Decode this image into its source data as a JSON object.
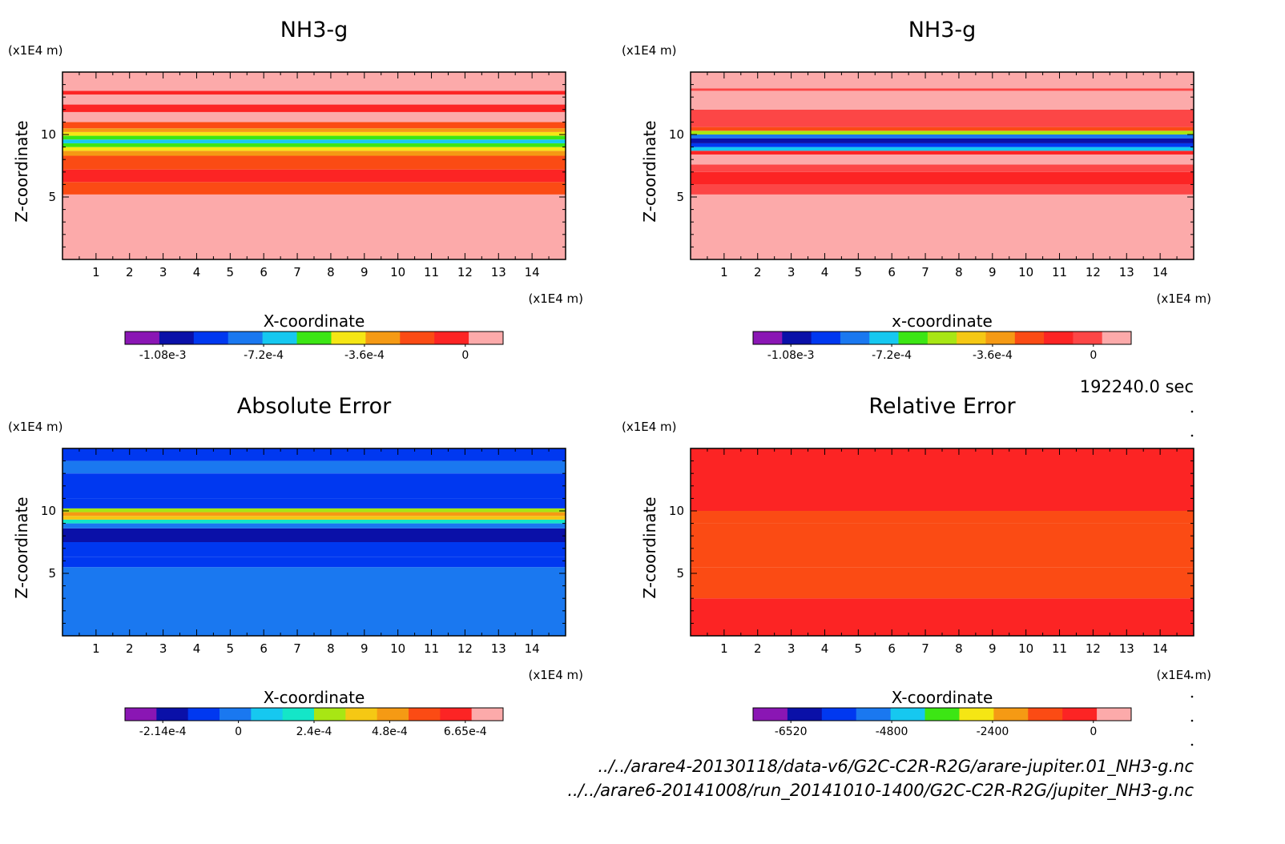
{
  "time_label": "192240.0 sec",
  "footer": {
    "line1": "../../arare4-20130118/data-v6/G2C-C2R-R2G/arare-jupiter.01_NH3-g.nc",
    "line2": "../../arare6-20141008/run_20141010-1400/G2C-C2R-R2G/jupiter_NH3-g.nc"
  },
  "chart_data": [
    {
      "type": "heatmap",
      "title": "NH3-g",
      "xlabel": "X-coordinate",
      "ylabel": "Z-coordinate",
      "x_unit": "(x1E4 m)",
      "y_unit": "(x1E4 m)",
      "xlim": [
        0,
        15
      ],
      "ylim": [
        0,
        15
      ],
      "x_ticks": [
        1,
        2,
        3,
        4,
        5,
        6,
        7,
        8,
        9,
        10,
        11,
        12,
        13,
        14
      ],
      "y_ticks": [
        5,
        10
      ],
      "colorbar": {
        "ticks": [
          "-1.08e-3",
          "-7.2e-4",
          "-3.6e-4",
          "0"
        ],
        "colors": [
          "#8a16b4",
          "#0a10a8",
          "#0038f0",
          "#1a78f0",
          "#16c8f0",
          "#3ce614",
          "#f5e614",
          "#f59a14",
          "#fb4b14",
          "#fc2424",
          "#fcaaaa"
        ]
      },
      "bands": [
        {
          "z0": 0,
          "z1": 5.2,
          "level": 10
        },
        {
          "z0": 5.2,
          "z1": 6.2,
          "level": 8
        },
        {
          "z0": 6.2,
          "z1": 7.2,
          "level": 9
        },
        {
          "z0": 7.2,
          "z1": 8.3,
          "level": 8
        },
        {
          "z0": 8.3,
          "z1": 8.7,
          "level": 7
        },
        {
          "z0": 8.7,
          "z1": 9.0,
          "level": 6
        },
        {
          "z0": 9.0,
          "z1": 9.3,
          "level": 5
        },
        {
          "z0": 9.3,
          "z1": 9.6,
          "level": 4
        },
        {
          "z0": 9.6,
          "z1": 9.9,
          "level": 5
        },
        {
          "z0": 9.9,
          "z1": 10.2,
          "level": 6
        },
        {
          "z0": 10.2,
          "z1": 10.5,
          "level": 7
        },
        {
          "z0": 10.5,
          "z1": 11.0,
          "level": 8
        },
        {
          "z0": 11.0,
          "z1": 11.8,
          "level": 10
        },
        {
          "z0": 11.8,
          "z1": 12.4,
          "level": 9
        },
        {
          "z0": 12.4,
          "z1": 13.2,
          "level": 10
        },
        {
          "z0": 13.2,
          "z1": 13.5,
          "level": 9
        },
        {
          "z0": 13.5,
          "z1": 15,
          "level": 10
        }
      ]
    },
    {
      "type": "heatmap",
      "title": "NH3-g",
      "xlabel": "x-coordinate",
      "ylabel": "Z-coordinate",
      "x_unit": "(x1E4 m)",
      "y_unit": "(x1E4 m)",
      "xlim": [
        0,
        15
      ],
      "ylim": [
        0,
        15
      ],
      "x_ticks": [
        1,
        2,
        3,
        4,
        5,
        6,
        7,
        8,
        9,
        10,
        11,
        12,
        13,
        14
      ],
      "y_ticks": [
        5,
        10
      ],
      "colorbar": {
        "ticks": [
          "-1.08e-3",
          "-7.2e-4",
          "-3.6e-4",
          "0"
        ],
        "colors": [
          "#8a16b4",
          "#0a10a8",
          "#0038f0",
          "#1a78f0",
          "#16c8f0",
          "#3ce614",
          "#a8e614",
          "#f5c814",
          "#f59a14",
          "#fb4b14",
          "#fc2424",
          "#fc4646",
          "#fcaaaa"
        ]
      },
      "bands": [
        {
          "z0": 0,
          "z1": 5.2,
          "level": 12
        },
        {
          "z0": 5.2,
          "z1": 6.0,
          "level": 11
        },
        {
          "z0": 6.0,
          "z1": 7.0,
          "level": 10
        },
        {
          "z0": 7.0,
          "z1": 7.6,
          "level": 11
        },
        {
          "z0": 7.6,
          "z1": 8.4,
          "level": 12
        },
        {
          "z0": 8.4,
          "z1": 8.7,
          "level": 10
        },
        {
          "z0": 8.7,
          "z1": 9.0,
          "level": 4
        },
        {
          "z0": 9.0,
          "z1": 9.3,
          "level": 2
        },
        {
          "z0": 9.3,
          "z1": 9.7,
          "level": 1
        },
        {
          "z0": 9.7,
          "z1": 10.0,
          "level": 3
        },
        {
          "z0": 10.0,
          "z1": 10.3,
          "level": 6
        },
        {
          "z0": 10.3,
          "z1": 10.6,
          "level": 9
        },
        {
          "z0": 10.6,
          "z1": 12.0,
          "level": 11
        },
        {
          "z0": 12.0,
          "z1": 13.5,
          "level": 12
        },
        {
          "z0": 13.5,
          "z1": 13.7,
          "level": 11
        },
        {
          "z0": 13.7,
          "z1": 15,
          "level": 12
        }
      ]
    },
    {
      "type": "heatmap",
      "title": "Absolute Error",
      "xlabel": "X-coordinate",
      "ylabel": "Z-coordinate",
      "x_unit": "(x1E4 m)",
      "y_unit": "(x1E4 m)",
      "xlim": [
        0,
        15
      ],
      "ylim": [
        0,
        15
      ],
      "x_ticks": [
        1,
        2,
        3,
        4,
        5,
        6,
        7,
        8,
        9,
        10,
        11,
        12,
        13,
        14
      ],
      "y_ticks": [
        5,
        10
      ],
      "colorbar": {
        "ticks": [
          "-2.14e-4",
          "0",
          "2.4e-4",
          "4.8e-4",
          "6.65e-4"
        ],
        "colors": [
          "#8a16b4",
          "#0a10a8",
          "#0038f0",
          "#1a78f0",
          "#16c8f0",
          "#14e6c8",
          "#a8e614",
          "#f5c814",
          "#f59a14",
          "#fb4b14",
          "#fc2424",
          "#fcaaaa"
        ]
      },
      "bands": [
        {
          "z0": 0,
          "z1": 5.5,
          "level": 3
        },
        {
          "z0": 5.5,
          "z1": 6.3,
          "level": 2
        },
        {
          "z0": 6.3,
          "z1": 7.5,
          "level": 2
        },
        {
          "z0": 7.5,
          "z1": 8.6,
          "level": 1
        },
        {
          "z0": 8.6,
          "z1": 9.0,
          "level": 3
        },
        {
          "z0": 9.0,
          "z1": 9.3,
          "level": 5
        },
        {
          "z0": 9.3,
          "z1": 9.6,
          "level": 7
        },
        {
          "z0": 9.6,
          "z1": 9.9,
          "level": 8
        },
        {
          "z0": 9.9,
          "z1": 10.2,
          "level": 6
        },
        {
          "z0": 10.2,
          "z1": 11.0,
          "level": 2
        },
        {
          "z0": 11.0,
          "z1": 13.0,
          "level": 2
        },
        {
          "z0": 13.0,
          "z1": 14.0,
          "level": 3
        },
        {
          "z0": 14.0,
          "z1": 15,
          "level": 2
        }
      ]
    },
    {
      "type": "heatmap",
      "title": "Relative Error",
      "xlabel": "X-coordinate",
      "ylabel": "Z-coordinate",
      "x_unit": "(x1E4 m)",
      "y_unit": "(x1E4 m)",
      "xlim": [
        0,
        15
      ],
      "ylim": [
        0,
        15
      ],
      "x_ticks": [
        1,
        2,
        3,
        4,
        5,
        6,
        7,
        8,
        9,
        10,
        11,
        12,
        13,
        14
      ],
      "y_ticks": [
        5,
        10
      ],
      "colorbar": {
        "ticks": [
          "-6520",
          "-4800",
          "-2400",
          "0"
        ],
        "colors": [
          "#8a16b4",
          "#0a10a8",
          "#0038f0",
          "#1a78f0",
          "#16c8f0",
          "#3ce614",
          "#f5e614",
          "#f59a14",
          "#fb4b14",
          "#fc2424",
          "#fcaaaa"
        ]
      },
      "bands": [
        {
          "z0": 0,
          "z1": 3.0,
          "level": 9
        },
        {
          "z0": 3.0,
          "z1": 5.5,
          "level": 8
        },
        {
          "z0": 5.5,
          "z1": 9.0,
          "level": 8
        },
        {
          "z0": 9.0,
          "z1": 10.0,
          "level": 8
        },
        {
          "z0": 10.0,
          "z1": 15,
          "level": 9
        }
      ]
    }
  ]
}
